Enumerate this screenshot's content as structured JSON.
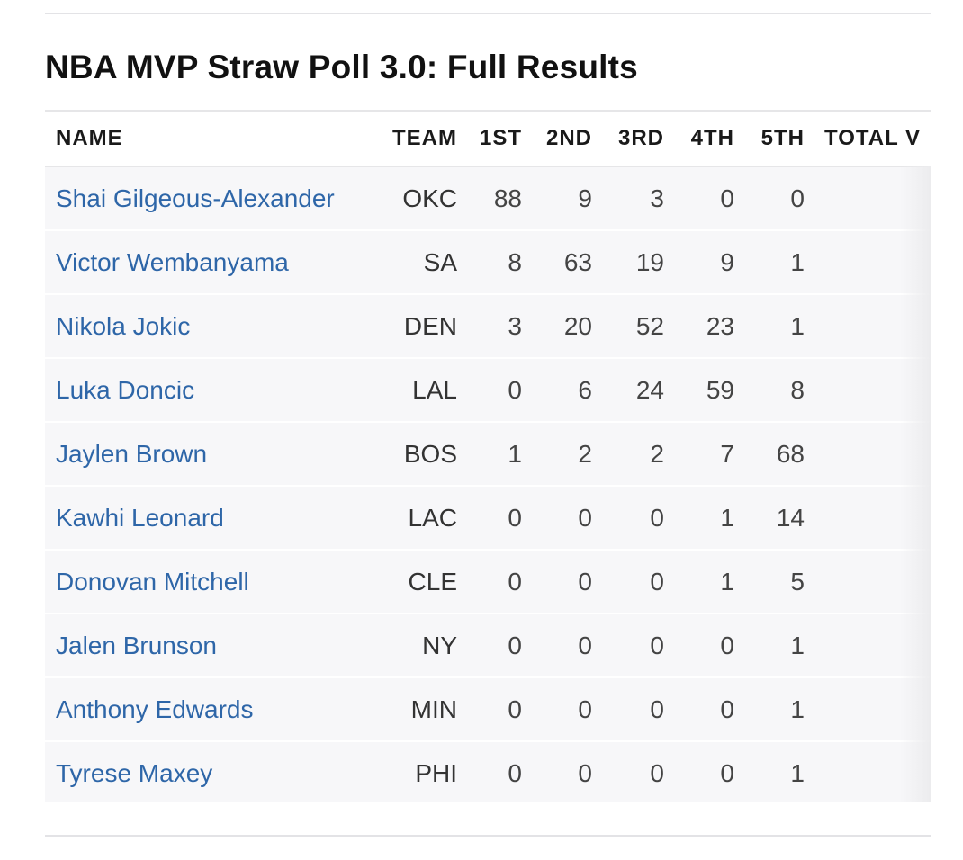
{
  "title": "NBA MVP Straw Poll 3.0: Full Results",
  "table": {
    "headers": {
      "name": "NAME",
      "team": "TEAM",
      "first": "1ST",
      "second": "2ND",
      "third": "3RD",
      "fourth": "4TH",
      "fifth": "5TH",
      "total": "TOTAL V"
    },
    "rows": [
      {
        "name": "Shai Gilgeous-Alexander",
        "team": "OKC",
        "first": "88",
        "second": "9",
        "third": "3",
        "fourth": "0",
        "fifth": "0"
      },
      {
        "name": "Victor Wembanyama",
        "team": "SA",
        "first": "8",
        "second": "63",
        "third": "19",
        "fourth": "9",
        "fifth": "1"
      },
      {
        "name": "Nikola Jokic",
        "team": "DEN",
        "first": "3",
        "second": "20",
        "third": "52",
        "fourth": "23",
        "fifth": "1"
      },
      {
        "name": "Luka Doncic",
        "team": "LAL",
        "first": "0",
        "second": "6",
        "third": "24",
        "fourth": "59",
        "fifth": "8"
      },
      {
        "name": "Jaylen Brown",
        "team": "BOS",
        "first": "1",
        "second": "2",
        "third": "2",
        "fourth": "7",
        "fifth": "68"
      },
      {
        "name": "Kawhi Leonard",
        "team": "LAC",
        "first": "0",
        "second": "0",
        "third": "0",
        "fourth": "1",
        "fifth": "14"
      },
      {
        "name": "Donovan Mitchell",
        "team": "CLE",
        "first": "0",
        "second": "0",
        "third": "0",
        "fourth": "1",
        "fifth": "5"
      },
      {
        "name": "Jalen Brunson",
        "team": "NY",
        "first": "0",
        "second": "0",
        "third": "0",
        "fourth": "0",
        "fifth": "1"
      },
      {
        "name": "Anthony Edwards",
        "team": "MIN",
        "first": "0",
        "second": "0",
        "third": "0",
        "fourth": "0",
        "fifth": "1"
      },
      {
        "name": "Tyrese Maxey",
        "team": "PHI",
        "first": "0",
        "second": "0",
        "third": "0",
        "fourth": "0",
        "fifth": "1"
      }
    ]
  },
  "colors": {
    "link": "#2e66a8",
    "row_bg": "#f7f7f9",
    "divider": "#e3e3e6"
  }
}
